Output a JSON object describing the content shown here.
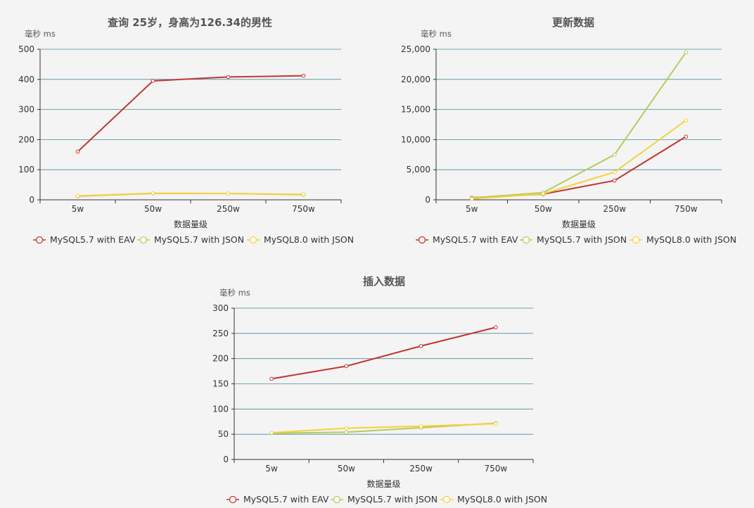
{
  "charts": [
    {
      "title": "查询 25岁，身高为126.34的男性",
      "ylabel": "毫秒 ms",
      "xlabel": "数据量级",
      "chart_type": "line",
      "categories": [
        "5w",
        "50w",
        "250w",
        "750w"
      ],
      "ylim": [
        0,
        500
      ],
      "yticks": [
        0,
        100,
        200,
        300,
        400,
        500
      ],
      "grid": true,
      "legend_position": "bottom",
      "series": [
        {
          "name": "MySQL5.7 with EAV",
          "color": "#c23531",
          "values": [
            160,
            395,
            408,
            412
          ]
        },
        {
          "name": "MySQL5.7 with JSON",
          "color": "#b5cc5a",
          "values": [
            12,
            21,
            21,
            17
          ]
        },
        {
          "name": "MySQL8.0 with JSON",
          "color": "#f3d23b",
          "values": [
            13,
            22,
            21,
            18
          ]
        }
      ]
    },
    {
      "title": "更新数据",
      "ylabel": "毫秒 ms",
      "xlabel": "数据量级",
      "chart_type": "line",
      "categories": [
        "5w",
        "50w",
        "250w",
        "750w"
      ],
      "ylim": [
        0,
        25000
      ],
      "yticks": [
        0,
        5000,
        10000,
        15000,
        20000,
        25000
      ],
      "ytick_labels": [
        "0",
        "5,000",
        "10,000",
        "15,000",
        "20,000",
        "25,000"
      ],
      "grid": true,
      "legend_position": "bottom",
      "series": [
        {
          "name": "MySQL5.7 with EAV",
          "color": "#c23531",
          "values": [
            350,
            950,
            3200,
            10500
          ]
        },
        {
          "name": "MySQL5.7 with JSON",
          "color": "#b5cc5a",
          "values": [
            300,
            1200,
            7500,
            24500
          ]
        },
        {
          "name": "MySQL8.0 with JSON",
          "color": "#f3d23b",
          "values": [
            150,
            1000,
            4600,
            13200
          ]
        }
      ]
    },
    {
      "title": "插入数据",
      "ylabel": "毫秒 ms",
      "xlabel": "数据量级",
      "chart_type": "line",
      "categories": [
        "5w",
        "50w",
        "250w",
        "750w"
      ],
      "ylim": [
        0,
        300
      ],
      "yticks": [
        0,
        50,
        100,
        150,
        200,
        250,
        300
      ],
      "grid": true,
      "legend_position": "bottom",
      "series": [
        {
          "name": "MySQL5.7 with EAV",
          "color": "#c23531",
          "values": [
            160,
            185,
            225,
            262
          ]
        },
        {
          "name": "MySQL5.7 with JSON",
          "color": "#b5cc5a",
          "values": [
            52,
            54,
            63,
            72
          ]
        },
        {
          "name": "MySQL8.0 with JSON",
          "color": "#f3d23b",
          "values": [
            53,
            62,
            66,
            71
          ]
        }
      ]
    }
  ],
  "chart_data": [
    {
      "type": "line",
      "title": "查询 25岁，身高为126.34的男性",
      "xlabel": "数据量级",
      "ylabel": "毫秒 ms",
      "categories": [
        "5w",
        "50w",
        "250w",
        "750w"
      ],
      "ylim": [
        0,
        500
      ],
      "series": [
        {
          "name": "MySQL5.7 with EAV",
          "values": [
            160,
            395,
            408,
            412
          ]
        },
        {
          "name": "MySQL5.7 with JSON",
          "values": [
            12,
            21,
            21,
            17
          ]
        },
        {
          "name": "MySQL8.0 with JSON",
          "values": [
            13,
            22,
            21,
            18
          ]
        }
      ]
    },
    {
      "type": "line",
      "title": "更新数据",
      "xlabel": "数据量级",
      "ylabel": "毫秒 ms",
      "categories": [
        "5w",
        "50w",
        "250w",
        "750w"
      ],
      "ylim": [
        0,
        25000
      ],
      "series": [
        {
          "name": "MySQL5.7 with EAV",
          "values": [
            350,
            950,
            3200,
            10500
          ]
        },
        {
          "name": "MySQL5.7 with JSON",
          "values": [
            300,
            1200,
            7500,
            24500
          ]
        },
        {
          "name": "MySQL8.0 with JSON",
          "values": [
            150,
            1000,
            4600,
            13200
          ]
        }
      ]
    },
    {
      "type": "line",
      "title": "插入数据",
      "xlabel": "数据量级",
      "ylabel": "毫秒 ms",
      "categories": [
        "5w",
        "50w",
        "250w",
        "750w"
      ],
      "ylim": [
        0,
        300
      ],
      "series": [
        {
          "name": "MySQL5.7 with EAV",
          "values": [
            160,
            185,
            225,
            262
          ]
        },
        {
          "name": "MySQL5.7 with JSON",
          "values": [
            52,
            54,
            63,
            72
          ]
        },
        {
          "name": "MySQL8.0 with JSON",
          "values": [
            53,
            62,
            66,
            71
          ]
        }
      ]
    }
  ]
}
